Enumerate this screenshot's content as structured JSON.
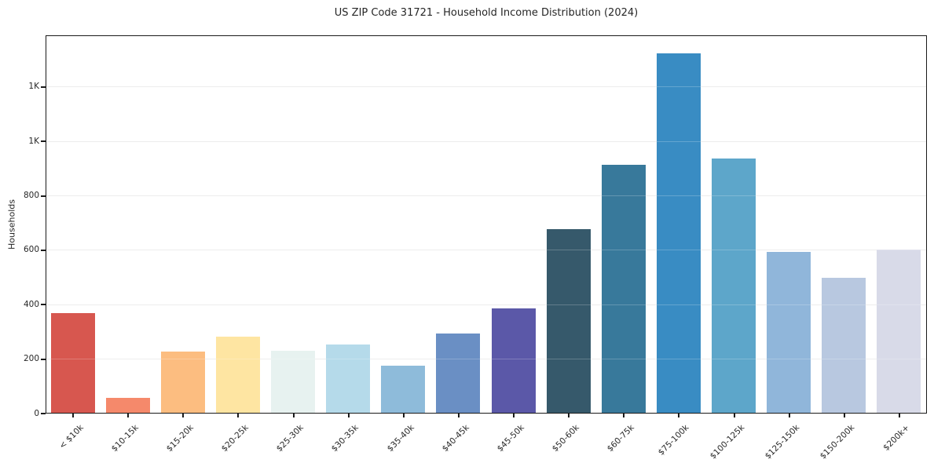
{
  "chart_data": {
    "type": "bar",
    "title": "US ZIP Code 31721 - Household Income Distribution (2024)",
    "xlabel": "",
    "ylabel": "Households",
    "categories": [
      "< $10k",
      "$10-15k",
      "$15-20k",
      "$20-25k",
      "$25-30k",
      "$30-35k",
      "$35-40k",
      "$40-45k",
      "$45-50k",
      "$50-60k",
      "$60-75k",
      "$75-100k",
      "$100-125k",
      "$125-150k",
      "$150-200k",
      "$200k+"
    ],
    "values": [
      365,
      55,
      225,
      280,
      228,
      250,
      173,
      290,
      385,
      675,
      910,
      1320,
      935,
      590,
      497,
      600
    ],
    "bar_colors": [
      "#d7574f",
      "#f5896b",
      "#fcbd80",
      "#fee5a2",
      "#e7f2f0",
      "#b5daea",
      "#8ebbda",
      "#6a8fc4",
      "#5b58a8",
      "#36596b",
      "#38799b",
      "#398cc3",
      "#5da6ca",
      "#90b6da",
      "#b8c8e0",
      "#d8dae8"
    ],
    "ylim": [
      0,
      1390
    ],
    "yticks": [
      {
        "value": 0,
        "label": "0"
      },
      {
        "value": 200,
        "label": "200"
      },
      {
        "value": 400,
        "label": "400"
      },
      {
        "value": 600,
        "label": "600"
      },
      {
        "value": 800,
        "label": "800"
      },
      {
        "value": 1000,
        "label": "1K"
      },
      {
        "value": 1200,
        "label": "1K"
      }
    ],
    "grid": true,
    "legend_position": "none",
    "background_color": "#ffffff",
    "grid_color": "#e8e8e8",
    "text_color": "#262626"
  }
}
